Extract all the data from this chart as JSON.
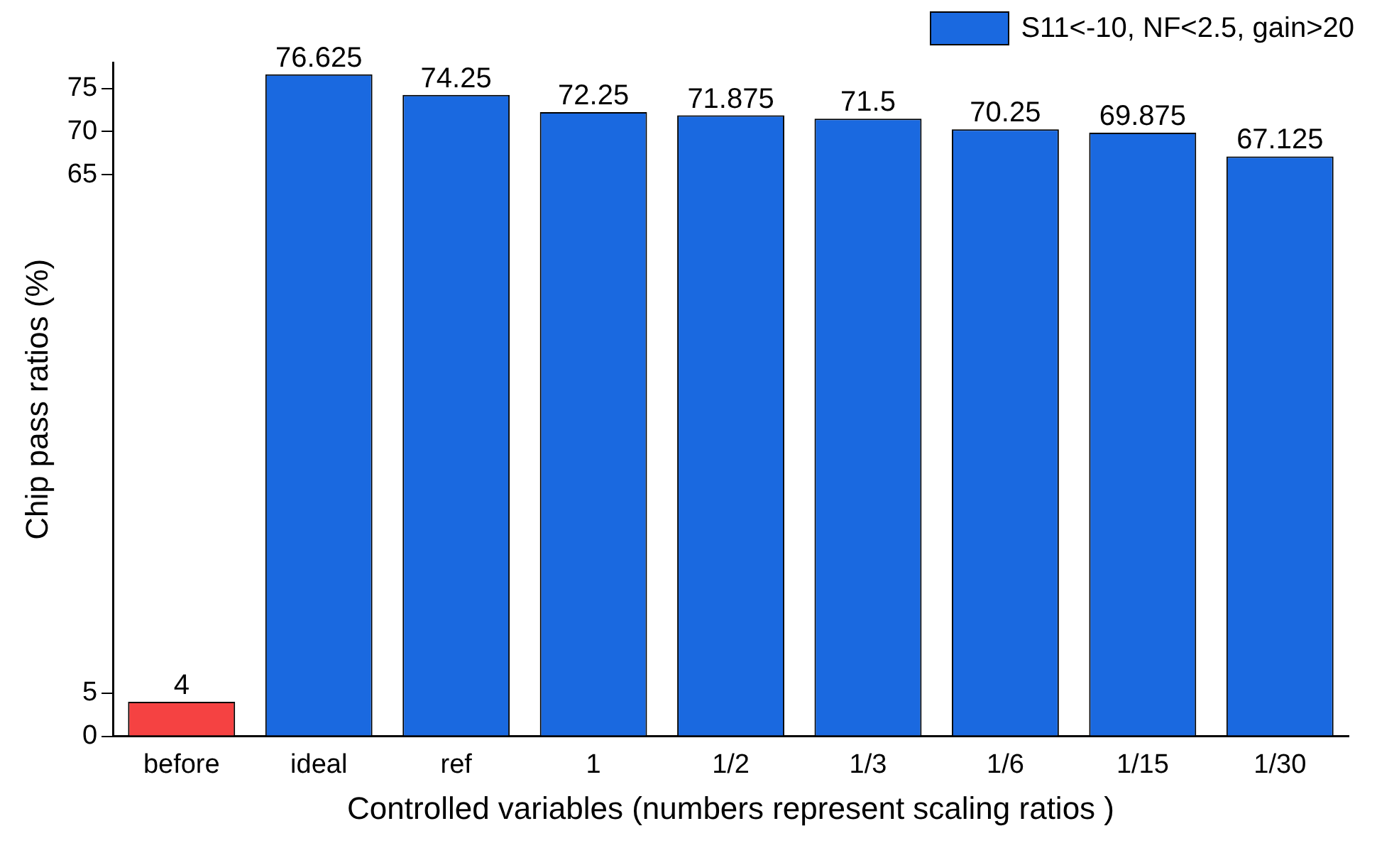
{
  "chart_data": {
    "type": "bar",
    "xlabel": "Controlled variables (numbers represent scaling ratios )",
    "ylabel": "Chip pass ratios (%)",
    "categories": [
      "before",
      "ideal",
      "ref",
      "1",
      "1/2",
      "1/3",
      "1/6",
      "1/15",
      "1/30"
    ],
    "series": [
      {
        "name": "S11<-10, NF<2.5, gain>20",
        "color": "#1a69e0",
        "colors": [
          "#f54242",
          "#1a69e0",
          "#1a69e0",
          "#1a69e0",
          "#1a69e0",
          "#1a69e0",
          "#1a69e0",
          "#1a69e0",
          "#1a69e0"
        ],
        "values": [
          4,
          76.625,
          74.25,
          72.25,
          71.875,
          71.5,
          70.25,
          69.875,
          67.125
        ]
      }
    ],
    "ylim": [
      0,
      78
    ],
    "yticks": [
      0,
      5,
      65,
      70,
      75
    ],
    "data_labels": true,
    "legend": "top right",
    "grid": false
  }
}
